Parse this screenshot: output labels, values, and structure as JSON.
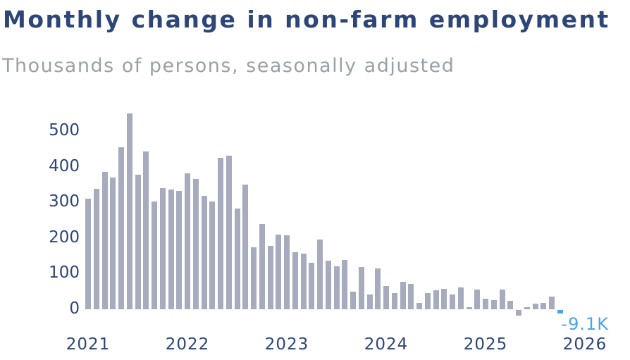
{
  "header": {
    "title": "Monthly change in non-farm employment",
    "subtitle": "Thousands of persons, seasonally adjusted"
  },
  "colors": {
    "title_navy": "#2d4677",
    "subtitle_gray": "#99a1a8",
    "axis_navy": "#2d4677",
    "bar_gray": "#a6abbe",
    "highlight_blue": "#4da3e8"
  },
  "chart_data": {
    "type": "bar",
    "title": "Monthly change in non-farm employment",
    "subtitle": "Thousands of persons, seasonally adjusted",
    "unit": "thousands of persons",
    "x": [
      "2021-01",
      "2021-02",
      "2021-03",
      "2021-04",
      "2021-05",
      "2021-06",
      "2021-07",
      "2021-08",
      "2021-09",
      "2021-10",
      "2021-11",
      "2021-12",
      "2022-01",
      "2022-02",
      "2022-03",
      "2022-04",
      "2022-05",
      "2022-06",
      "2022-07",
      "2022-08",
      "2022-09",
      "2022-10",
      "2022-11",
      "2022-12",
      "2023-01",
      "2023-02",
      "2023-03",
      "2023-04",
      "2023-05",
      "2023-06",
      "2023-07",
      "2023-08",
      "2023-09",
      "2023-10",
      "2023-11",
      "2023-12",
      "2024-01",
      "2024-02",
      "2024-03",
      "2024-04",
      "2024-05",
      "2024-06",
      "2024-07",
      "2024-08",
      "2024-09",
      "2024-10",
      "2024-11",
      "2024-12",
      "2025-01",
      "2025-02",
      "2025-03",
      "2025-04",
      "2025-05",
      "2025-06",
      "2025-07",
      "2025-08",
      "2025-09",
      "2025-10"
    ],
    "values": [
      311,
      337,
      386,
      370,
      454,
      550,
      378,
      443,
      303,
      340,
      335,
      333,
      381,
      366,
      318,
      302,
      425,
      431,
      283,
      349,
      173,
      240,
      177,
      210,
      208,
      161,
      157,
      130,
      196,
      136,
      121,
      138,
      49,
      118,
      42,
      115,
      65,
      45,
      77,
      71,
      18,
      45,
      54,
      57,
      42,
      61,
      6,
      55,
      29,
      26,
      55,
      23,
      -15,
      6,
      15,
      18,
      35,
      -9.1
    ],
    "highlight_index": 57,
    "last_label": "-9.1K",
    "yticks": [
      0,
      100,
      200,
      300,
      400,
      500
    ],
    "xticks": [
      "2021",
      "2022",
      "2023",
      "2024",
      "2025",
      "2026"
    ],
    "ylim": [
      -30,
      560
    ],
    "grid": false,
    "legend": "none",
    "bar_color": "#a6abbe",
    "highlight_color": "#4da3e8"
  }
}
